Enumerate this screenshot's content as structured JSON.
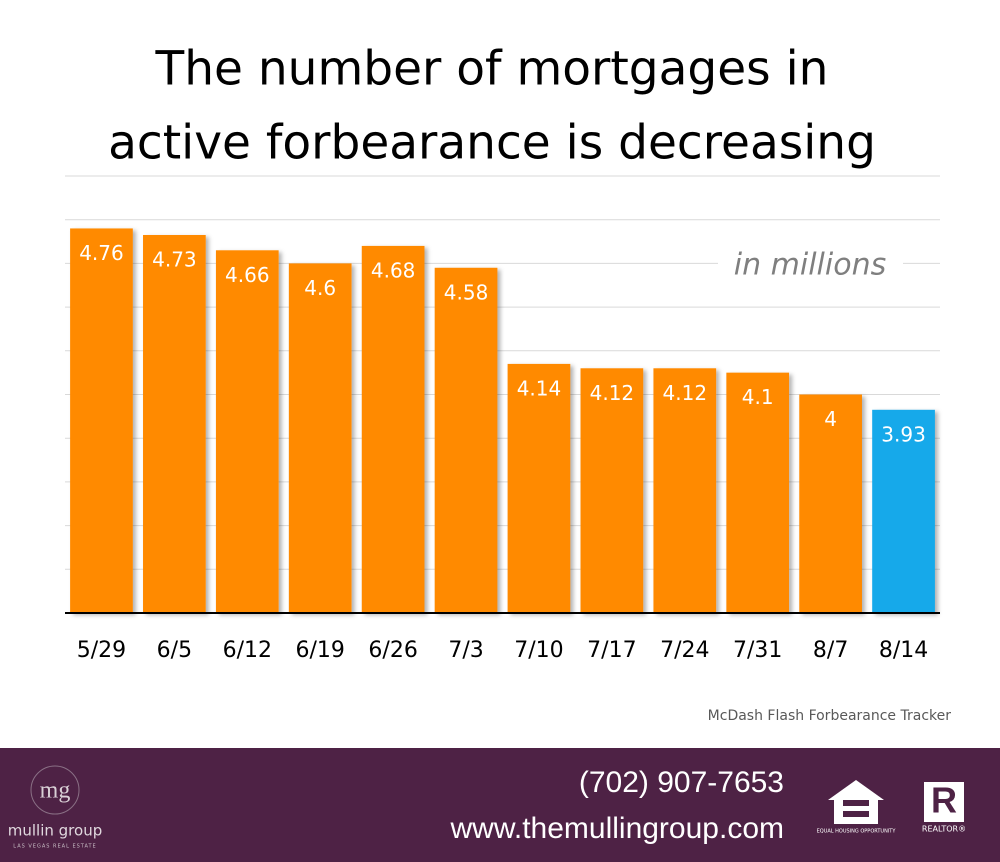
{
  "chart_data": {
    "type": "bar",
    "title": [
      "The number of mortgages in",
      "active forbearance is decreasing"
    ],
    "subtitle": "in millions",
    "categories": [
      "5/29",
      "6/5",
      "6/12",
      "6/19",
      "6/26",
      "7/3",
      "7/10",
      "7/17",
      "7/24",
      "7/31",
      "8/7",
      "8/14"
    ],
    "values": [
      4.76,
      4.73,
      4.66,
      4.6,
      4.68,
      4.58,
      4.14,
      4.12,
      4.12,
      4.1,
      4,
      3.93
    ],
    "colors": [
      "#ff8a00",
      "#ff8a00",
      "#ff8a00",
      "#ff8a00",
      "#ff8a00",
      "#ff8a00",
      "#ff8a00",
      "#ff8a00",
      "#ff8a00",
      "#ff8a00",
      "#ff8a00",
      "#12a9ea"
    ],
    "ylim": [
      3,
      5
    ],
    "yticks": [
      3,
      3.2,
      3.4,
      3.6,
      3.8,
      4,
      4.2,
      4.4,
      4.6,
      4.8,
      5
    ],
    "grid": true,
    "source": "McDash Flash Forbearance Tracker"
  },
  "footer": {
    "phone": "(702) 907-7653",
    "website": "www.themullingroup.com",
    "logo_mark": "mg",
    "logo_name": "mullin group",
    "logo_tagline": "LAS VEGAS REAL ESTATE",
    "equal_housing": "EQUAL HOUSING OPPORTUNITY",
    "realtor": "REALTOR®"
  }
}
